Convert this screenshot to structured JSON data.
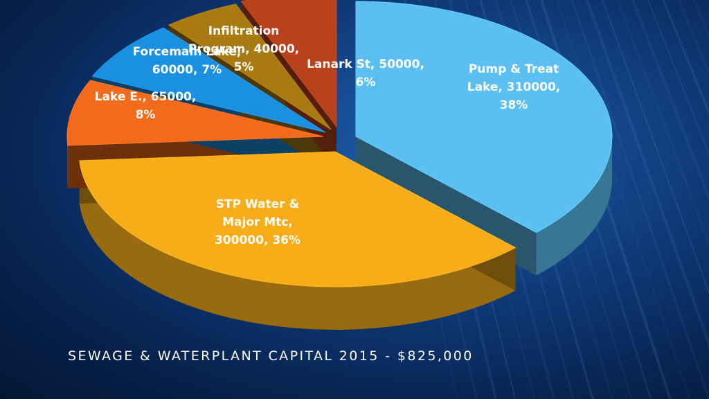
{
  "slide": {
    "title": "SEWAGE & WATERPLANT CAPITAL 2015 - $825,000"
  },
  "chart_data": {
    "type": "pie",
    "title": "SEWAGE & WATERPLANT CAPITAL 2015 - $825,000",
    "total": 825000,
    "legend": "none",
    "slices": [
      {
        "name": "Pump & Treat Lake",
        "value": 310000,
        "percent": 38,
        "color": "#5bbff2",
        "label_lines": [
          "Pump & Treat",
          "Lake, 310000,",
          "38%"
        ]
      },
      {
        "name": "STP Water & Major Mtc",
        "value": 300000,
        "percent": 36,
        "color": "#f6ad19",
        "label_lines": [
          "STP Water &",
          "Major Mtc,",
          "300000, 36%"
        ]
      },
      {
        "name": "Lake E.",
        "value": 65000,
        "percent": 8,
        "color": "#f26b1d",
        "label_lines": [
          "Lake E., 65000,",
          "8%"
        ]
      },
      {
        "name": "Forcemain Lake",
        "value": 60000,
        "percent": 7,
        "color": "#1b8fe0",
        "label_lines": [
          "Forcemain Lake,",
          "60000, 7%"
        ]
      },
      {
        "name": "Infiltration Program",
        "value": 40000,
        "percent": 5,
        "color": "#a87a12",
        "label_lines": [
          "Infiltration",
          "Program, 40000,",
          "5%"
        ]
      },
      {
        "name": "Lanark St",
        "value": 50000,
        "percent": 6,
        "color": "#b8421b",
        "label_lines": [
          "Lanark St, 50000,",
          "6%"
        ]
      }
    ]
  }
}
